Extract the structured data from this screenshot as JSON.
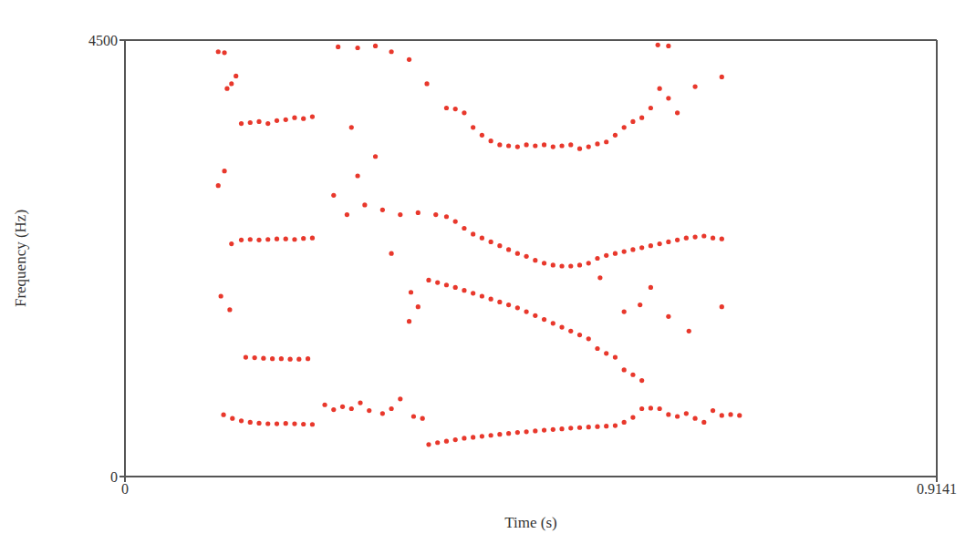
{
  "chart_data": {
    "type": "scatter",
    "x_label": "Time (s)",
    "y_label": "Frequency (Hz)",
    "xlim": [
      0,
      0.9141
    ],
    "ylim": [
      0,
      4500
    ],
    "xticks": [
      0,
      0.9141
    ],
    "yticks": [
      0,
      4500
    ],
    "grid": false,
    "color": "#e8382c",
    "marker": "circle",
    "x": [
      0.111,
      0.121,
      0.131,
      0.141,
      0.151,
      0.161,
      0.171,
      0.181,
      0.191,
      0.201,
      0.211,
      0.225,
      0.235,
      0.245,
      0.255,
      0.265,
      0.275,
      0.29,
      0.3,
      0.31,
      0.325,
      0.335,
      0.342,
      0.352,
      0.362,
      0.372,
      0.382,
      0.392,
      0.402,
      0.412,
      0.422,
      0.432,
      0.442,
      0.452,
      0.462,
      0.472,
      0.482,
      0.492,
      0.502,
      0.512,
      0.522,
      0.532,
      0.542,
      0.552,
      0.562,
      0.572,
      0.582,
      0.592,
      0.602,
      0.612,
      0.622,
      0.632,
      0.642,
      0.652,
      0.662,
      0.672,
      0.682,
      0.692,
      0.136,
      0.146,
      0.156,
      0.166,
      0.176,
      0.186,
      0.196,
      0.206,
      0.342,
      0.352,
      0.362,
      0.372,
      0.382,
      0.392,
      0.402,
      0.412,
      0.422,
      0.432,
      0.442,
      0.452,
      0.462,
      0.472,
      0.482,
      0.492,
      0.502,
      0.512,
      0.522,
      0.532,
      0.542,
      0.552,
      0.562,
      0.572,
      0.582,
      0.131,
      0.141,
      0.151,
      0.161,
      0.171,
      0.181,
      0.191,
      0.201,
      0.211,
      0.235,
      0.25,
      0.27,
      0.29,
      0.31,
      0.33,
      0.35,
      0.362,
      0.372,
      0.382,
      0.392,
      0.402,
      0.412,
      0.422,
      0.432,
      0.442,
      0.452,
      0.462,
      0.472,
      0.482,
      0.492,
      0.502,
      0.512,
      0.522,
      0.532,
      0.542,
      0.552,
      0.562,
      0.572,
      0.582,
      0.592,
      0.602,
      0.612,
      0.622,
      0.632,
      0.642,
      0.652,
      0.662,
      0.672,
      0.131,
      0.141,
      0.151,
      0.161,
      0.171,
      0.181,
      0.191,
      0.201,
      0.211,
      0.362,
      0.372,
      0.382,
      0.392,
      0.402,
      0.412,
      0.422,
      0.432,
      0.442,
      0.452,
      0.462,
      0.472,
      0.482,
      0.492,
      0.502,
      0.512,
      0.522,
      0.532,
      0.542,
      0.552,
      0.562,
      0.572,
      0.582,
      0.592,
      0.602,
      0.612,
      0.622,
      0.105,
      0.112,
      0.115,
      0.12,
      0.125,
      0.24,
      0.262,
      0.282,
      0.3,
      0.32,
      0.34,
      0.6,
      0.612,
      0.642,
      0.672,
      0.105,
      0.112,
      0.108,
      0.118,
      0.12,
      0.255,
      0.262,
      0.282,
      0.3,
      0.32,
      0.322,
      0.33,
      0.535,
      0.562,
      0.58,
      0.592,
      0.612,
      0.635,
      0.672
    ],
    "values": [
      637,
      600,
      575,
      560,
      550,
      545,
      544,
      548,
      544,
      540,
      538,
      740,
      690,
      720,
      700,
      760,
      680,
      650,
      700,
      800,
      620,
      600,
      330,
      350,
      365,
      380,
      395,
      405,
      415,
      425,
      435,
      445,
      455,
      462,
      470,
      478,
      485,
      492,
      500,
      505,
      510,
      515,
      520,
      525,
      560,
      610,
      700,
      705,
      700,
      640,
      620,
      650,
      600,
      560,
      680,
      630,
      640,
      630,
      1230,
      1225,
      1220,
      1215,
      1215,
      1210,
      1210,
      1215,
      2025,
      2000,
      1975,
      1950,
      1920,
      1890,
      1860,
      1830,
      1800,
      1770,
      1740,
      1700,
      1660,
      1620,
      1580,
      1540,
      1500,
      1460,
      1420,
      1320,
      1270,
      1230,
      1100,
      1050,
      990,
      2440,
      2445,
      2440,
      2445,
      2450,
      2450,
      2445,
      2455,
      2460,
      2900,
      2700,
      2800,
      2750,
      2700,
      2720,
      2700,
      2680,
      2630,
      2560,
      2500,
      2460,
      2420,
      2380,
      2340,
      2300,
      2270,
      2230,
      2200,
      2180,
      2170,
      2170,
      2180,
      2200,
      2250,
      2280,
      2300,
      2320,
      2340,
      2360,
      2380,
      2400,
      2420,
      2440,
      2460,
      2470,
      2480,
      2460,
      2450,
      3640,
      3650,
      3660,
      3640,
      3670,
      3680,
      3700,
      3690,
      3710,
      3800,
      3790,
      3750,
      3600,
      3520,
      3460,
      3420,
      3410,
      3400,
      3420,
      3410,
      3420,
      3400,
      3410,
      3420,
      3380,
      3400,
      3430,
      3450,
      3520,
      3600,
      3660,
      3700,
      3800,
      4000,
      3900,
      3750,
      4380,
      4370,
      4000,
      4050,
      4130,
      4430,
      4420,
      4440,
      4380,
      4300,
      4050,
      4450,
      4440,
      4020,
      4120,
      3000,
      3150,
      1860,
      1720,
      2400,
      3600,
      3100,
      3300,
      2300,
      1600,
      1900,
      1750,
      2050,
      1700,
      1770,
      1950,
      1650,
      1500,
      1750
    ]
  }
}
